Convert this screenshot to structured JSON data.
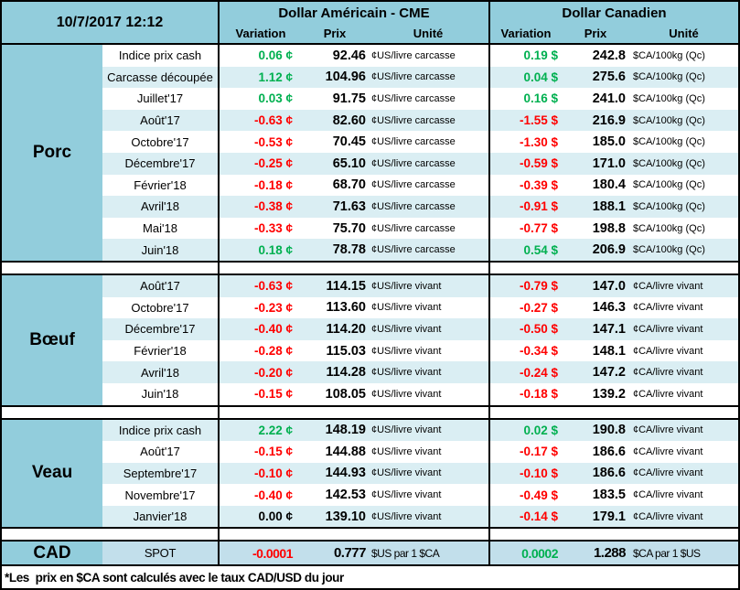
{
  "meta": {
    "datetime": "10/7/2017 12:12"
  },
  "colors": {
    "header_blue": "#92CDDC",
    "stripe_blue": "#DAEEF3",
    "cad_row_blue": "#C2DFEB",
    "positive": "#00B050",
    "negative": "#FF0000",
    "neutral": "#000000"
  },
  "header": {
    "us": {
      "title": "Dollar Américain - CME",
      "cols": [
        "Variation",
        "Prix",
        "Unité"
      ]
    },
    "ca": {
      "title": "Dollar Canadien",
      "cols": [
        "Variation",
        "Prix",
        "Unité"
      ]
    }
  },
  "sections": [
    {
      "name": "Porc",
      "stripe_start": "white",
      "rows": [
        {
          "label": "Indice prix cash",
          "us_var": "0.06 ¢",
          "us_sign": "pos",
          "us_prix": "92.46",
          "us_unit": "¢US/livre carcasse",
          "ca_var": "0.19 $",
          "ca_sign": "pos",
          "ca_prix": "242.8",
          "ca_unit": "$CA/100kg (Qc)"
        },
        {
          "label": "Carcasse découpée",
          "us_var": "1.12 ¢",
          "us_sign": "pos",
          "us_prix": "104.96",
          "us_unit": "¢US/livre carcasse",
          "ca_var": "0.04 $",
          "ca_sign": "pos",
          "ca_prix": "275.6",
          "ca_unit": "$CA/100kg (Qc)"
        },
        {
          "label": "Juillet'17",
          "us_var": "0.03 ¢",
          "us_sign": "pos",
          "us_prix": "91.75",
          "us_unit": "¢US/livre carcasse",
          "ca_var": "0.16 $",
          "ca_sign": "pos",
          "ca_prix": "241.0",
          "ca_unit": "$CA/100kg (Qc)"
        },
        {
          "label": "Août'17",
          "us_var": "-0.63 ¢",
          "us_sign": "neg",
          "us_prix": "82.60",
          "us_unit": "¢US/livre carcasse",
          "ca_var": "-1.55 $",
          "ca_sign": "neg",
          "ca_prix": "216.9",
          "ca_unit": "$CA/100kg (Qc)"
        },
        {
          "label": "Octobre'17",
          "us_var": "-0.53 ¢",
          "us_sign": "neg",
          "us_prix": "70.45",
          "us_unit": "¢US/livre carcasse",
          "ca_var": "-1.30 $",
          "ca_sign": "neg",
          "ca_prix": "185.0",
          "ca_unit": "$CA/100kg (Qc)"
        },
        {
          "label": "Décembre'17",
          "us_var": "-0.25 ¢",
          "us_sign": "neg",
          "us_prix": "65.10",
          "us_unit": "¢US/livre carcasse",
          "ca_var": "-0.59 $",
          "ca_sign": "neg",
          "ca_prix": "171.0",
          "ca_unit": "$CA/100kg (Qc)"
        },
        {
          "label": "Février'18",
          "us_var": "-0.18 ¢",
          "us_sign": "neg",
          "us_prix": "68.70",
          "us_unit": "¢US/livre carcasse",
          "ca_var": "-0.39 $",
          "ca_sign": "neg",
          "ca_prix": "180.4",
          "ca_unit": "$CA/100kg (Qc)"
        },
        {
          "label": "Avril'18",
          "us_var": "-0.38 ¢",
          "us_sign": "neg",
          "us_prix": "71.63",
          "us_unit": "¢US/livre carcasse",
          "ca_var": "-0.91 $",
          "ca_sign": "neg",
          "ca_prix": "188.1",
          "ca_unit": "$CA/100kg (Qc)"
        },
        {
          "label": "Mai'18",
          "us_var": "-0.33 ¢",
          "us_sign": "neg",
          "us_prix": "75.70",
          "us_unit": "¢US/livre carcasse",
          "ca_var": "-0.77 $",
          "ca_sign": "neg",
          "ca_prix": "198.8",
          "ca_unit": "$CA/100kg (Qc)"
        },
        {
          "label": "Juin'18",
          "us_var": "0.18 ¢",
          "us_sign": "pos",
          "us_prix": "78.78",
          "us_unit": "¢US/livre carcasse",
          "ca_var": "0.54 $",
          "ca_sign": "pos",
          "ca_prix": "206.9",
          "ca_unit": "$CA/100kg (Qc)"
        }
      ]
    },
    {
      "name": "Bœuf",
      "stripe_start": "blue",
      "rows": [
        {
          "label": "Août'17",
          "us_var": "-0.63 ¢",
          "us_sign": "neg",
          "us_prix": "114.15",
          "us_unit": "¢US/livre vivant",
          "ca_var": "-0.79 $",
          "ca_sign": "neg",
          "ca_prix": "147.0",
          "ca_unit": "¢CA/livre vivant"
        },
        {
          "label": "Octobre'17",
          "us_var": "-0.23 ¢",
          "us_sign": "neg",
          "us_prix": "113.60",
          "us_unit": "¢US/livre vivant",
          "ca_var": "-0.27 $",
          "ca_sign": "neg",
          "ca_prix": "146.3",
          "ca_unit": "¢CA/livre vivant"
        },
        {
          "label": "Décembre'17",
          "us_var": "-0.40 ¢",
          "us_sign": "neg",
          "us_prix": "114.20",
          "us_unit": "¢US/livre vivant",
          "ca_var": "-0.50 $",
          "ca_sign": "neg",
          "ca_prix": "147.1",
          "ca_unit": "¢CA/livre vivant"
        },
        {
          "label": "Février'18",
          "us_var": "-0.28 ¢",
          "us_sign": "neg",
          "us_prix": "115.03",
          "us_unit": "¢US/livre vivant",
          "ca_var": "-0.34 $",
          "ca_sign": "neg",
          "ca_prix": "148.1",
          "ca_unit": "¢CA/livre vivant"
        },
        {
          "label": "Avril'18",
          "us_var": "-0.20 ¢",
          "us_sign": "neg",
          "us_prix": "114.28",
          "us_unit": "¢US/livre vivant",
          "ca_var": "-0.24 $",
          "ca_sign": "neg",
          "ca_prix": "147.2",
          "ca_unit": "¢CA/livre vivant"
        },
        {
          "label": "Juin'18",
          "us_var": "-0.15 ¢",
          "us_sign": "neg",
          "us_prix": "108.05",
          "us_unit": "¢US/livre vivant",
          "ca_var": "-0.18 $",
          "ca_sign": "neg",
          "ca_prix": "139.2",
          "ca_unit": "¢CA/livre vivant"
        }
      ]
    },
    {
      "name": "Veau",
      "stripe_start": "blue",
      "rows": [
        {
          "label": "Indice prix cash",
          "us_var": "2.22 ¢",
          "us_sign": "pos",
          "us_prix": "148.19",
          "us_unit": "¢US/livre vivant",
          "ca_var": "0.02 $",
          "ca_sign": "pos",
          "ca_prix": "190.8",
          "ca_unit": "¢CA/livre vivant"
        },
        {
          "label": "Août'17",
          "us_var": "-0.15 ¢",
          "us_sign": "neg",
          "us_prix": "144.88",
          "us_unit": "¢US/livre vivant",
          "ca_var": "-0.17 $",
          "ca_sign": "neg",
          "ca_prix": "186.6",
          "ca_unit": "¢CA/livre vivant"
        },
        {
          "label": "Septembre'17",
          "us_var": "-0.10 ¢",
          "us_sign": "neg",
          "us_prix": "144.93",
          "us_unit": "¢US/livre vivant",
          "ca_var": "-0.10 $",
          "ca_sign": "neg",
          "ca_prix": "186.6",
          "ca_unit": "¢CA/livre vivant"
        },
        {
          "label": "Novembre'17",
          "us_var": "-0.40 ¢",
          "us_sign": "neg",
          "us_prix": "142.53",
          "us_unit": "¢US/livre vivant",
          "ca_var": "-0.49 $",
          "ca_sign": "neg",
          "ca_prix": "183.5",
          "ca_unit": "¢CA/livre vivant"
        },
        {
          "label": "Janvier'18",
          "us_var": "0.00 ¢",
          "us_sign": "zero",
          "us_prix": "139.10",
          "us_unit": "¢US/livre vivant",
          "ca_var": "-0.14 $",
          "ca_sign": "neg",
          "ca_prix": "179.1",
          "ca_unit": "¢CA/livre vivant"
        }
      ]
    }
  ],
  "cad": {
    "name": "CAD",
    "label": "SPOT",
    "us_var": "-0.0001",
    "us_sign": "neg",
    "us_prix": "0.777",
    "us_unit": "$US par 1 $CA",
    "ca_var": "0.0002",
    "ca_sign": "pos",
    "ca_prix": "1.288",
    "ca_unit": "$CA par 1 $US"
  },
  "footnote": "*Les  prix en $CA sont calculés avec le taux CAD/USD du jour"
}
